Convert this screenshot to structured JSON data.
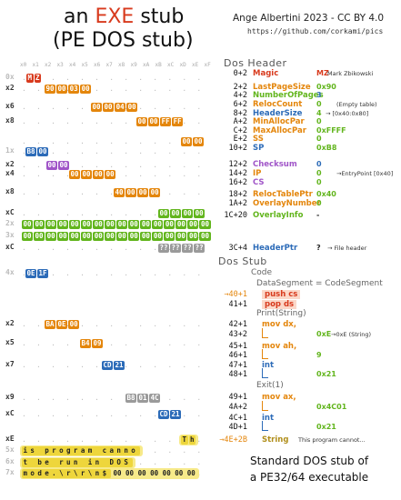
{
  "title": {
    "pre": "an",
    "exe": "EXE",
    "post": "stub",
    "line2": "(PE DOS stub)"
  },
  "credit": {
    "author": "Ange Albertini 2023 - CC BY 4.0",
    "url": "https://github.com/corkami/pics"
  },
  "colors": {
    "red": "#d83a1d",
    "orange": "#e4860c",
    "green": "#62b51d",
    "blue": "#2c6bb8",
    "gray": "#9a9a9a",
    "yellow": "#eed63c",
    "olive": "#b08e1a",
    "purple": "#a055c8"
  },
  "hex": {
    "col_headers": [
      "x0",
      "x1",
      "x2",
      "x3",
      "x4",
      "x5",
      "x6",
      "x7",
      "x8",
      "x9",
      "xA",
      "xB",
      "xC",
      "xD",
      "xE",
      "xF"
    ],
    "rows": [
      {
        "label": "0x",
        "bytes": [
          "M",
          "Z"
        ]
      },
      {
        "label": "x2",
        "bytes": [
          "90",
          "00",
          "03",
          "00"
        ]
      },
      {
        "label": "x6",
        "bytes": [
          "00",
          "00",
          "04",
          "00"
        ]
      },
      {
        "label": "x8",
        "bytes": [
          "00",
          "00",
          "FF",
          "FF"
        ]
      },
      {
        "label": "",
        "bytes": [
          "00",
          "00"
        ]
      },
      {
        "label": "1x",
        "bytes": [
          "B8",
          "00"
        ]
      },
      {
        "label": "x2",
        "bytes": [
          "00",
          "00"
        ]
      },
      {
        "label": "x4",
        "bytes": [
          "00",
          "00",
          "00",
          "00"
        ]
      },
      {
        "label": "x8",
        "bytes": [
          "40",
          "00",
          "00",
          "00"
        ]
      },
      {
        "label": "xC",
        "bytes": [
          "00",
          "00",
          "00",
          "00"
        ]
      },
      {
        "label": "2x",
        "bytes": [
          "00",
          "00",
          "00",
          "00",
          "00",
          "00",
          "00",
          "00",
          "00",
          "00",
          "00",
          "00",
          "00",
          "00",
          "00",
          "00"
        ]
      },
      {
        "label": "3x",
        "bytes": [
          "00",
          "00",
          "00",
          "00",
          "00",
          "00",
          "00",
          "00",
          "00",
          "00",
          "00",
          "00",
          "00",
          "00",
          "00",
          "00"
        ]
      },
      {
        "label": "xC",
        "bytes": [
          "??",
          "??",
          "??",
          "??"
        ]
      },
      {
        "label": "4x",
        "bytes": [
          "0E",
          "1F"
        ]
      },
      {
        "label": "x2",
        "bytes": [
          "BA",
          "0E",
          "00"
        ]
      },
      {
        "label": "x5",
        "bytes": [
          "B4",
          "09"
        ]
      },
      {
        "label": "x7",
        "bytes": [
          "CD",
          "21"
        ]
      },
      {
        "label": "x9",
        "bytes": [
          "B8",
          "01",
          "4C"
        ]
      },
      {
        "label": "xC",
        "bytes": [
          "CD",
          "21"
        ]
      },
      {
        "label": "xE",
        "bytes": [
          "T",
          "h"
        ]
      },
      {
        "label": "5x",
        "text": "is program canno"
      },
      {
        "label": "6x",
        "text": "t be run in DOS "
      },
      {
        "label": "7x",
        "text": "mode.\\r\\r\\n$",
        "tail": "00 00 00 00 00 00 00"
      }
    ]
  },
  "dos_header": {
    "heading": "Dos Header",
    "fields": [
      {
        "off": "0+2",
        "name": "Magic",
        "value": "MZ",
        "comment": "Mark Zbikowski"
      },
      {
        "off": "2+2",
        "name": "LastPageSize",
        "value": "0x90",
        "comment": ""
      },
      {
        "off": "4+2",
        "name": "NumberOfPages",
        "value": "3",
        "comment": ""
      },
      {
        "off": "6+2",
        "name": "RelocCount",
        "value": "0",
        "comment": "(Empty table)"
      },
      {
        "off": "8+2",
        "name": "HeaderSize",
        "value": "4",
        "comment": "→ [0x40:0x80]"
      },
      {
        "off": "A+2",
        "name": "MinAllocPar",
        "value": "0",
        "comment": ""
      },
      {
        "off": "C+2",
        "name": "MaxAllocPar",
        "value": "0xFFFF",
        "comment": ""
      },
      {
        "off": "E+2",
        "name": "SS",
        "value": "0",
        "comment": ""
      },
      {
        "off": "10+2",
        "name": "SP",
        "value": "0xB8",
        "comment": ""
      },
      {
        "off": "12+2",
        "name": "Checksum",
        "value": "0",
        "comment": ""
      },
      {
        "off": "14+2",
        "name": "IP",
        "value": "0",
        "comment": "→EntryPoint [0x40]"
      },
      {
        "off": "16+2",
        "name": "CS",
        "value": "0",
        "comment": ""
      },
      {
        "off": "18+2",
        "name": "RelocTablePtr",
        "value": "0x40",
        "comment": ""
      },
      {
        "off": "1A+2",
        "name": "OverlayNumber",
        "value": "0",
        "comment": ""
      },
      {
        "off": "1C+20",
        "name": "OverlayInfo",
        "value": "-",
        "comment": ""
      },
      {
        "off": "3C+4",
        "name": "HeaderPtr",
        "value": "?",
        "comment": "→ File header"
      }
    ]
  },
  "dos_stub": {
    "heading": "Dos Stub",
    "code_label": "Code",
    "ds_label": "DataSegment = CodeSegment",
    "print_label": "Print(String)",
    "exit_label": "Exit(1)",
    "lines": [
      {
        "off": "→40+1",
        "ins": "push cs",
        "val": "",
        "comment": ""
      },
      {
        "off": "41+1",
        "ins": "pop ds",
        "val": "",
        "comment": ""
      },
      {
        "off": "42+1",
        "ins": "mov dx,",
        "val": "",
        "comment": ""
      },
      {
        "off": "43+2",
        "ins": "",
        "val": "0xE",
        "comment": "→0xE (String)"
      },
      {
        "off": "45+1",
        "ins": "mov ah,",
        "val": "",
        "comment": ""
      },
      {
        "off": "46+1",
        "ins": "",
        "val": "9",
        "comment": ""
      },
      {
        "off": "47+1",
        "ins": "int",
        "val": "",
        "comment": ""
      },
      {
        "off": "48+1",
        "ins": "",
        "val": "0x21",
        "comment": ""
      },
      {
        "off": "49+1",
        "ins": "mov ax,",
        "val": "",
        "comment": ""
      },
      {
        "off": "4A+2",
        "ins": "",
        "val": "0x4C01",
        "comment": ""
      },
      {
        "off": "4C+1",
        "ins": "int",
        "val": "",
        "comment": ""
      },
      {
        "off": "4D+1",
        "ins": "",
        "val": "0x21",
        "comment": ""
      },
      {
        "off": "→4E+2B",
        "ins": "String",
        "val": "",
        "comment": "This program cannot..."
      }
    ]
  },
  "footer": {
    "line1": "Standard DOS stub of",
    "line2": "a PE32/64 executable"
  }
}
